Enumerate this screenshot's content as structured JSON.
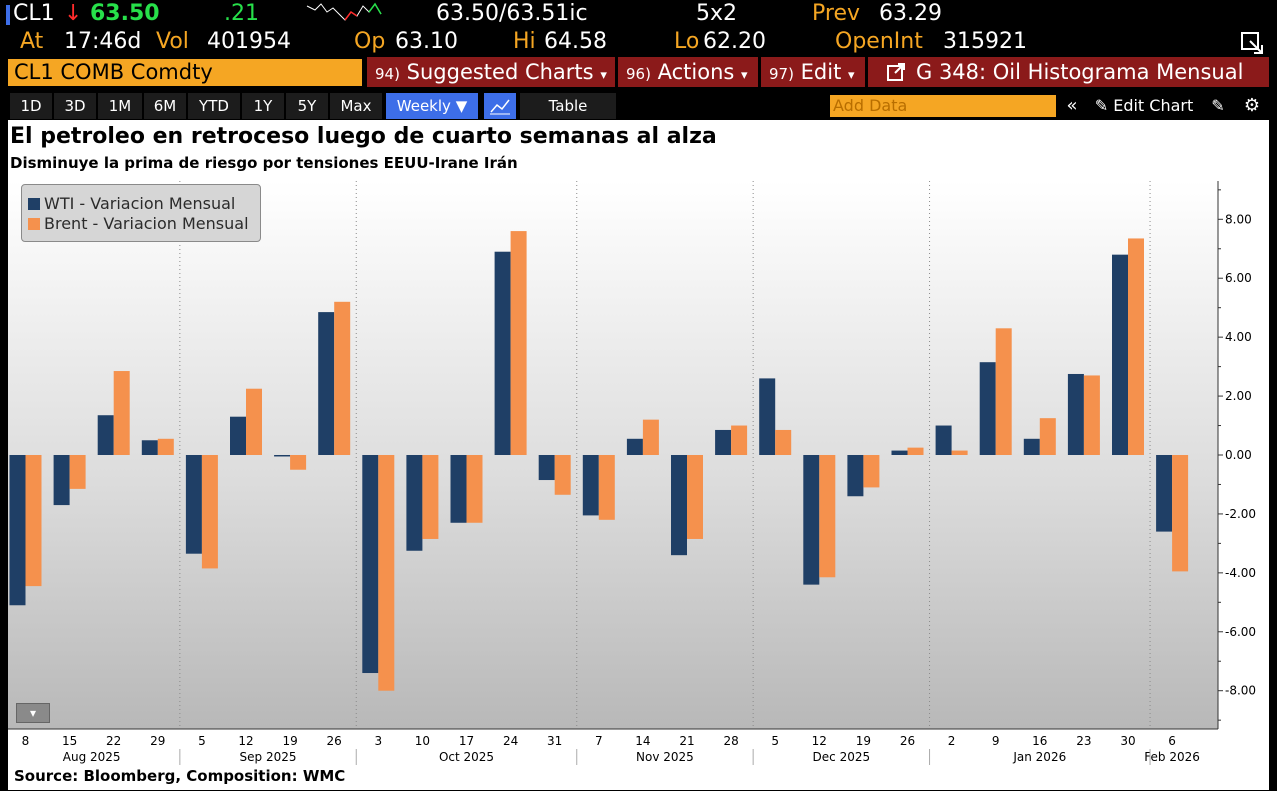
{
  "header": {
    "ticker": "CL1",
    "arrow": "↓",
    "last": "63.50",
    "change": ".21",
    "bid_ask": "63.50/63.51ic",
    "size": "5x2",
    "prev_label": "Prev",
    "prev_value": "63.29",
    "at_label": "At",
    "time": "17:46d",
    "vol_label": "Vol",
    "vol_value": "401954",
    "op_label": "Op",
    "op_value": "63.10",
    "hi_label": "Hi",
    "hi_value": "64.58",
    "lo_label": "Lo",
    "lo_value": "62.20",
    "oi_label": "OpenInt",
    "oi_value": "315921"
  },
  "command_bar": {
    "security": "CL1 COMB Comdty",
    "suggested_num": "94)",
    "suggested_label": "Suggested Charts",
    "actions_num": "96)",
    "actions_label": "Actions",
    "edit_num": "97)",
    "edit_label": "Edit",
    "chart_name": "G 348: Oil Histograma Mensual"
  },
  "toolbar": {
    "ranges": [
      "1D",
      "3D",
      "1M",
      "6M",
      "YTD",
      "1Y",
      "5Y",
      "Max"
    ],
    "frequency": "Weekly",
    "table_label": "Table",
    "add_data_placeholder": "Add Data",
    "edit_chart_label": "Edit Chart"
  },
  "chart_data": {
    "type": "bar",
    "title": "El petroleo en retroceso luego de cuarto semanas al alza",
    "subtitle": "Disminuye la prima de riesgo por tensiones EEUU-Irane Irán",
    "source": "Source: Bloomberg, Composition: WMC",
    "categories": [
      "8",
      "15",
      "22",
      "29",
      "5",
      "12",
      "19",
      "26",
      "3",
      "10",
      "17",
      "24",
      "31",
      "7",
      "14",
      "21",
      "28",
      "5",
      "12",
      "19",
      "26",
      "2",
      "9",
      "16",
      "23",
      "30",
      "6"
    ],
    "months": [
      {
        "label": "Aug 2025",
        "start": 0,
        "end": 3
      },
      {
        "label": "Sep 2025",
        "start": 4,
        "end": 7
      },
      {
        "label": "Oct 2025",
        "start": 8,
        "end": 12
      },
      {
        "label": "Nov 2025",
        "start": 13,
        "end": 16
      },
      {
        "label": "Dec 2025",
        "start": 17,
        "end": 20
      },
      {
        "label": "Jan 2026",
        "start": 21,
        "end": 25
      },
      {
        "label": "Feb 2026",
        "start": 26,
        "end": 26
      }
    ],
    "series": [
      {
        "name": "WTI - Variacion Mensual",
        "color": "#1f3f66",
        "values": [
          -5.1,
          -1.7,
          1.35,
          0.5,
          -3.35,
          1.3,
          -0.05,
          4.85,
          -7.4,
          -3.25,
          -2.3,
          6.9,
          -0.85,
          -2.05,
          0.55,
          -3.4,
          0.85,
          2.6,
          -4.4,
          -1.4,
          0.15,
          1.0,
          3.15,
          0.55,
          2.75,
          6.8,
          -2.6
        ]
      },
      {
        "name": "Brent - Variacion Mensual",
        "color": "#f5914d",
        "values": [
          -4.45,
          -1.15,
          2.85,
          0.55,
          -3.85,
          2.25,
          -0.5,
          5.2,
          -8.0,
          -2.85,
          -2.3,
          7.6,
          -1.35,
          -2.2,
          1.2,
          -2.85,
          1.0,
          0.85,
          -4.15,
          -1.1,
          0.25,
          0.15,
          4.3,
          1.25,
          2.7,
          7.35,
          -3.95
        ]
      }
    ],
    "ylim": [
      -9.3,
      9.3
    ],
    "yticks": [
      "8.00",
      "6.00",
      "4.00",
      "2.00",
      "0.00",
      "-2.00",
      "-4.00",
      "-6.00",
      "-8.00"
    ],
    "legend_position": "top-left",
    "grid": true
  }
}
